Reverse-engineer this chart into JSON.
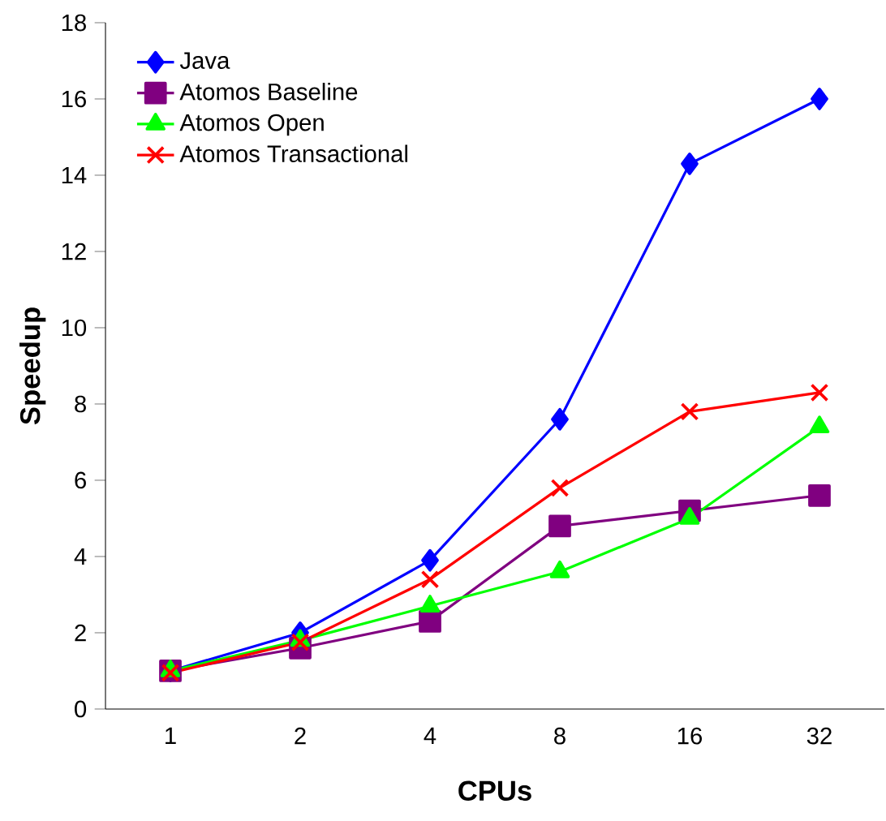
{
  "chart_data": {
    "type": "line",
    "xlabel": "CPUs",
    "ylabel": "Speedup",
    "categories": [
      "1",
      "2",
      "4",
      "8",
      "16",
      "32"
    ],
    "series": [
      {
        "name": "Java",
        "color": "#0000ff",
        "marker": "diamond",
        "values": [
          1.0,
          2.0,
          3.9,
          7.6,
          14.3,
          16.0
        ]
      },
      {
        "name": "Atomos Baseline",
        "color": "#800080",
        "marker": "square",
        "values": [
          1.0,
          1.6,
          2.3,
          4.8,
          5.2,
          5.6
        ]
      },
      {
        "name": "Atomos Open",
        "color": "#00ff00",
        "marker": "triangle",
        "values": [
          1.0,
          1.8,
          2.7,
          3.6,
          5.0,
          7.4
        ]
      },
      {
        "name": "Atomos Transactional",
        "color": "#ff0000",
        "marker": "cross",
        "values": [
          0.95,
          1.75,
          3.4,
          5.8,
          7.8,
          8.3
        ]
      }
    ],
    "ylim": [
      0,
      18
    ],
    "yticks": [
      0,
      2,
      4,
      6,
      8,
      10,
      12,
      14,
      16,
      18
    ],
    "grid": false,
    "legend": "top left",
    "line_style": "solid"
  }
}
